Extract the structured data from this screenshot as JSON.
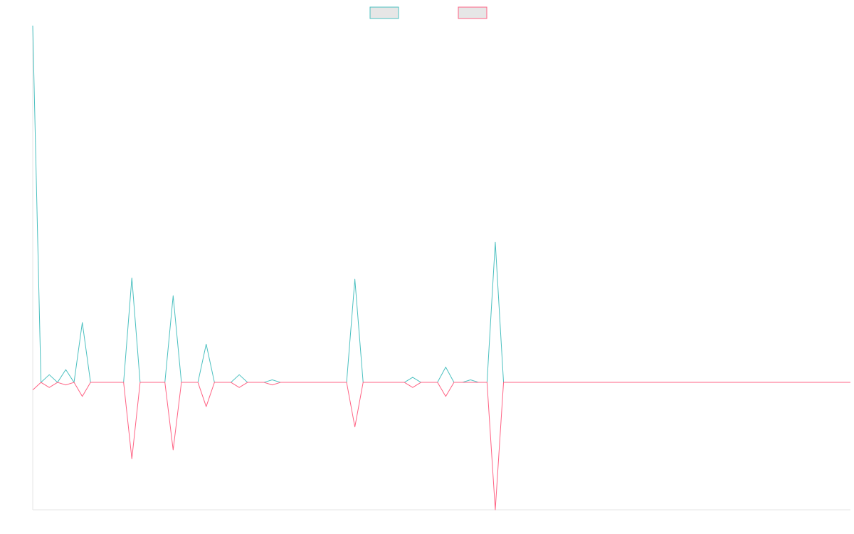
{
  "chart_data": {
    "type": "line",
    "title": "",
    "xlabel": "",
    "ylabel": "",
    "x_count": 100,
    "ylim": [
      -100,
      280
    ],
    "series": [
      {
        "name": "",
        "color": "#4bc0c0",
        "fill": "#e6e6e6",
        "points": [
          [
            0,
            280
          ],
          [
            1,
            0
          ],
          [
            2,
            6
          ],
          [
            3,
            0
          ],
          [
            4,
            10
          ],
          [
            5,
            0
          ],
          [
            6,
            47
          ],
          [
            7,
            0
          ],
          [
            11,
            0
          ],
          [
            12,
            82
          ],
          [
            13,
            0
          ],
          [
            14,
            0
          ],
          [
            15,
            0
          ],
          [
            16,
            0
          ],
          [
            17,
            68
          ],
          [
            18,
            0
          ],
          [
            20,
            0
          ],
          [
            21,
            30
          ],
          [
            22,
            0
          ],
          [
            24,
            0
          ],
          [
            25,
            6
          ],
          [
            26,
            0
          ],
          [
            27,
            0
          ],
          [
            28,
            0
          ],
          [
            29,
            2
          ],
          [
            30,
            0
          ],
          [
            38,
            0
          ],
          [
            39,
            81
          ],
          [
            40,
            0
          ],
          [
            45,
            0
          ],
          [
            46,
            4
          ],
          [
            47,
            0
          ],
          [
            49,
            0
          ],
          [
            50,
            12
          ],
          [
            51,
            0
          ],
          [
            52,
            0
          ],
          [
            53,
            2
          ],
          [
            54,
            0
          ],
          [
            55,
            0
          ],
          [
            56,
            110
          ],
          [
            57,
            0
          ],
          [
            99,
            0
          ]
        ]
      },
      {
        "name": "",
        "color": "#ff6384",
        "fill": "#e6e6e6",
        "points": [
          [
            0,
            -6
          ],
          [
            1,
            0
          ],
          [
            2,
            -4
          ],
          [
            3,
            0
          ],
          [
            4,
            -2
          ],
          [
            5,
            0
          ],
          [
            6,
            -11
          ],
          [
            7,
            0
          ],
          [
            11,
            0
          ],
          [
            12,
            -60
          ],
          [
            13,
            0
          ],
          [
            14,
            0
          ],
          [
            15,
            0
          ],
          [
            16,
            0
          ],
          [
            17,
            -53
          ],
          [
            18,
            0
          ],
          [
            20,
            0
          ],
          [
            21,
            -19
          ],
          [
            22,
            0
          ],
          [
            24,
            0
          ],
          [
            25,
            -4
          ],
          [
            26,
            0
          ],
          [
            27,
            0
          ],
          [
            28,
            0
          ],
          [
            29,
            -2
          ],
          [
            30,
            0
          ],
          [
            38,
            0
          ],
          [
            39,
            -35
          ],
          [
            40,
            0
          ],
          [
            45,
            0
          ],
          [
            46,
            -4
          ],
          [
            47,
            0
          ],
          [
            49,
            0
          ],
          [
            50,
            -11
          ],
          [
            51,
            0
          ],
          [
            52,
            0
          ],
          [
            53,
            0
          ],
          [
            54,
            0
          ],
          [
            55,
            0
          ],
          [
            56,
            -100
          ],
          [
            57,
            0
          ],
          [
            99,
            0
          ]
        ]
      }
    ],
    "legend": {
      "position": "top"
    },
    "grid": false
  }
}
